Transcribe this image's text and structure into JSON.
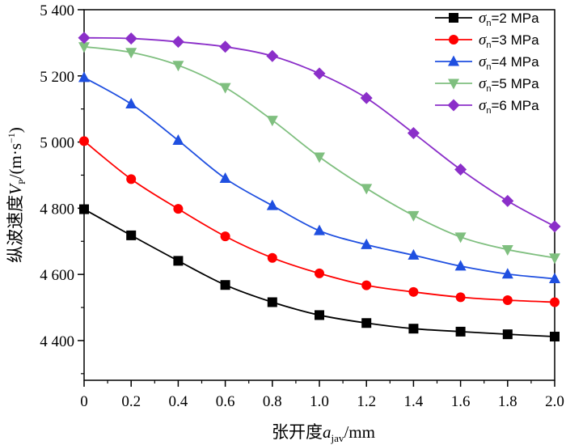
{
  "chart_data": {
    "type": "line",
    "xlabel": "张开度a_jav/mm",
    "ylabel": "纵波速度V_P/(m·s^-1)",
    "xlabel_parts": {
      "prefix": "张开度",
      "var": "a",
      "sub": "jav",
      "suffix": "/mm"
    },
    "ylabel_parts": {
      "prefix": "纵波速度",
      "var": "V",
      "sub": "P",
      "mid": "/(m·s",
      "sup": "−1",
      "suffix": ")"
    },
    "xlim": [
      0,
      2.0
    ],
    "ylim": [
      4280,
      5400
    ],
    "x_ticks": [
      0,
      0.2,
      0.4,
      0.6,
      0.8,
      1.0,
      1.2,
      1.4,
      1.6,
      1.8,
      2.0
    ],
    "x_tick_labels": [
      "0",
      "0.2",
      "0.4",
      "0.6",
      "0.8",
      "1.0",
      "1.2",
      "1.4",
      "1.6",
      "1.8",
      "2.0"
    ],
    "y_ticks": [
      4400,
      4600,
      4800,
      5000,
      5200,
      5400
    ],
    "y_tick_labels": [
      "4 400",
      "4 600",
      "4 800",
      "5 000",
      "5 200",
      "5 400"
    ],
    "grid": false,
    "legend_position": "top-right",
    "x": [
      0,
      0.2,
      0.4,
      0.6,
      0.8,
      1.0,
      1.2,
      1.4,
      1.6,
      1.8,
      2.0
    ],
    "series": [
      {
        "name": "σn=2 MPa",
        "symbol": "σ",
        "sub": "n",
        "rest": "=2 MPa",
        "color": "#000000",
        "marker": "square",
        "values": [
          4797,
          4718,
          4641,
          4568,
          4516,
          4477,
          4453,
          4436,
          4427,
          4419,
          4412
        ]
      },
      {
        "name": "σn=3 MPa",
        "symbol": "σ",
        "sub": "n",
        "rest": "=3 MPa",
        "color": "#ff0000",
        "marker": "circle",
        "values": [
          5003,
          4888,
          4798,
          4715,
          4650,
          4603,
          4567,
          4547,
          4531,
          4522,
          4516
        ]
      },
      {
        "name": "σn=4 MPa",
        "symbol": "σ",
        "sub": "n",
        "rest": "=4 MPa",
        "color": "#1f4fe0",
        "marker": "triangle-up",
        "values": [
          5195,
          5115,
          5005,
          4890,
          4808,
          4732,
          4690,
          4658,
          4625,
          4601,
          4587
        ]
      },
      {
        "name": "σn=5 MPa",
        "symbol": "σ",
        "sub": "n",
        "rest": "=5 MPa",
        "color": "#7fbf7f",
        "marker": "triangle-down",
        "values": [
          5288,
          5271,
          5232,
          5165,
          5066,
          4955,
          4860,
          4778,
          4713,
          4675,
          4650
        ]
      },
      {
        "name": "σn=6 MPa",
        "symbol": "σ",
        "sub": "n",
        "rest": "=6 MPa",
        "color": "#8b2fc9",
        "marker": "diamond",
        "values": [
          5315,
          5313,
          5303,
          5288,
          5260,
          5207,
          5133,
          5027,
          4917,
          4822,
          4745
        ]
      }
    ]
  }
}
